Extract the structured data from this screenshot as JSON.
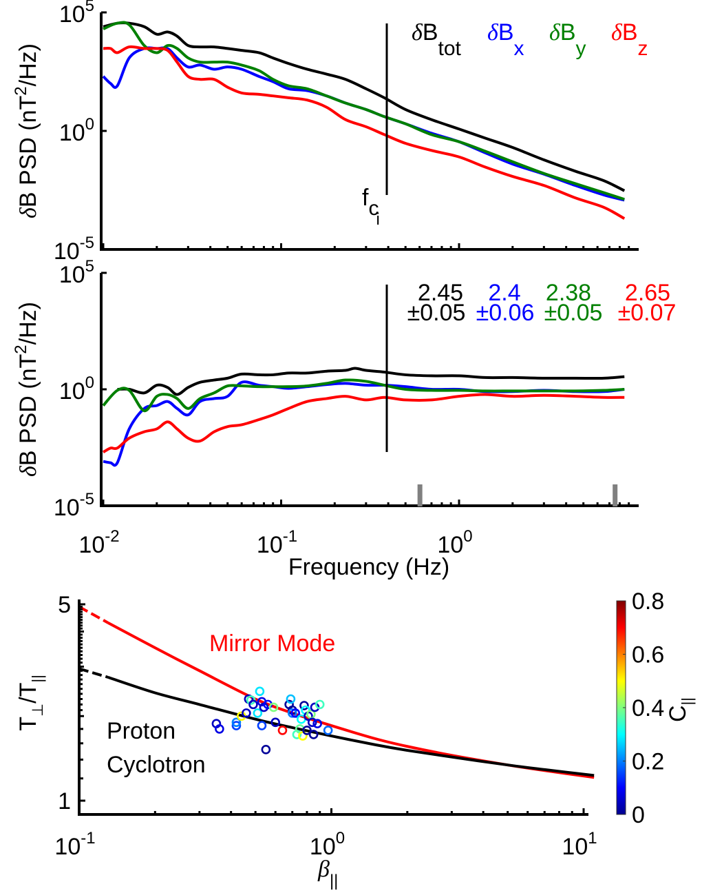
{
  "chart_data": [
    {
      "type": "line",
      "panel": "top",
      "xscale": "log",
      "yscale": "log",
      "xlim": [
        0.01,
        8.5
      ],
      "ylim": [
        1e-05,
        100000.0
      ],
      "ylabel": "δB PSD (nT²/Hz)",
      "ylabel_parts": {
        "delta": "δ",
        "main": "B PSD (nT",
        "sup": "2",
        "tail": "/Hz)"
      },
      "yticks": [
        {
          "value": 100000.0,
          "base": "10",
          "exp": "5"
        },
        {
          "value": 1,
          "base": "10",
          "exp": "0"
        },
        {
          "value": 1e-05,
          "base": "10",
          "exp": "-5"
        }
      ],
      "grid": false,
      "vline": {
        "x": 0.38,
        "label_main": "f",
        "label_sub": "c",
        "label_subsub": "i"
      },
      "legend": {
        "placement": "top-right",
        "entries": [
          {
            "delta": "δ",
            "main": "B",
            "sub": "tot",
            "color": "#000000"
          },
          {
            "delta": "δ",
            "main": "B",
            "sub": "x",
            "color": "#0000ff"
          },
          {
            "delta": "δ",
            "main": "B",
            "sub": "y",
            "color": "#008000"
          },
          {
            "delta": "δ",
            "main": "B",
            "sub": "z",
            "color": "#ff0000"
          }
        ]
      },
      "series": [
        {
          "name": "δB_tot",
          "color": "#000000",
          "x": [
            0.01,
            0.012,
            0.014,
            0.017,
            0.02,
            0.023,
            0.026,
            0.03,
            0.035,
            0.042,
            0.05,
            0.06,
            0.075,
            0.09,
            0.11,
            0.14,
            0.18,
            0.23,
            0.3,
            0.38,
            0.5,
            0.7,
            1.0,
            1.4,
            2.0,
            3.0,
            4.5,
            6.5,
            8.5
          ],
          "y": [
            25000,
            35000,
            35000,
            25000,
            12000,
            15000,
            10000,
            4000,
            3500,
            3500,
            3000,
            2500,
            2000,
            1200,
            700,
            400,
            250,
            150,
            60,
            25,
            8,
            3,
            1.2,
            0.5,
            0.2,
            0.06,
            0.02,
            0.008,
            0.003
          ]
        },
        {
          "name": "δB_x",
          "color": "#0000ff",
          "x": [
            0.01,
            0.011,
            0.012,
            0.014,
            0.017,
            0.02,
            0.023,
            0.026,
            0.03,
            0.035,
            0.042,
            0.05,
            0.06,
            0.075,
            0.09,
            0.11,
            0.14,
            0.18,
            0.23,
            0.3,
            0.38,
            0.5,
            0.7,
            1.0,
            1.4,
            2.0,
            3.0,
            4.5,
            6.5,
            8.5
          ],
          "y": [
            200,
            100,
            80,
            1200,
            3000,
            3000,
            3000,
            1200,
            500,
            600,
            400,
            500,
            400,
            200,
            120,
            60,
            50,
            30,
            15,
            8,
            4,
            2,
            0.8,
            0.35,
            0.12,
            0.04,
            0.015,
            0.005,
            0.002,
            0.0012
          ]
        },
        {
          "name": "δB_y",
          "color": "#008000",
          "x": [
            0.01,
            0.012,
            0.014,
            0.017,
            0.02,
            0.023,
            0.026,
            0.03,
            0.035,
            0.042,
            0.05,
            0.06,
            0.075,
            0.09,
            0.11,
            0.14,
            0.18,
            0.23,
            0.3,
            0.38,
            0.5,
            0.7,
            1.0,
            1.4,
            2.0,
            3.0,
            4.5,
            6.5,
            8.5
          ],
          "y": [
            20000,
            35000,
            30000,
            4000,
            2000,
            4000,
            3000,
            1200,
            800,
            800,
            800,
            600,
            350,
            150,
            80,
            60,
            30,
            15,
            8,
            4,
            2,
            0.7,
            0.35,
            0.14,
            0.05,
            0.016,
            0.006,
            0.0025,
            0.0013
          ]
        },
        {
          "name": "δB_z",
          "color": "#ff0000",
          "x": [
            0.01,
            0.011,
            0.012,
            0.014,
            0.017,
            0.02,
            0.023,
            0.026,
            0.03,
            0.035,
            0.042,
            0.05,
            0.06,
            0.075,
            0.09,
            0.11,
            0.14,
            0.18,
            0.23,
            0.3,
            0.38,
            0.5,
            0.7,
            1.0,
            1.4,
            2.0,
            3.0,
            4.5,
            6.5,
            8.5
          ],
          "y": [
            3000,
            3000,
            2000,
            3500,
            3000,
            3000,
            2500,
            800,
            200,
            150,
            150,
            70,
            40,
            35,
            30,
            25,
            20,
            10,
            3,
            1.5,
            0.7,
            0.3,
            0.15,
            0.08,
            0.03,
            0.012,
            0.005,
            0.0015,
            0.0006,
            0.0002
          ]
        }
      ]
    },
    {
      "type": "line",
      "panel": "middle",
      "xscale": "log",
      "yscale": "log",
      "xlim": [
        0.01,
        8.5
      ],
      "ylim": [
        1e-05,
        100000.0
      ],
      "xlabel": "Frequency (Hz)",
      "ylabel": "δB PSD (nT²/Hz)",
      "ylabel_parts": {
        "delta": "δ",
        "main": "B PSD (nT",
        "sup": "2",
        "tail": "/Hz)"
      },
      "xticks": [
        {
          "value": 0.01,
          "base": "10",
          "exp": "-2"
        },
        {
          "value": 0.1,
          "base": "10",
          "exp": "-1"
        },
        {
          "value": 1,
          "base": "10",
          "exp": "0"
        }
      ],
      "yticks": [
        {
          "value": 100000.0,
          "base": "10",
          "exp": "5"
        },
        {
          "value": 1,
          "base": "10",
          "exp": "0"
        },
        {
          "value": 1e-05,
          "base": "10",
          "exp": "-5"
        }
      ],
      "grid": false,
      "vline": {
        "x": 0.38
      },
      "range_markers": {
        "x": [
          0.6,
          7.5
        ],
        "color": "#808080"
      },
      "annotations": [
        {
          "slope": "2.45",
          "err": "±0.05",
          "color": "#000000"
        },
        {
          "slope": "2.4",
          "err": "±0.06",
          "color": "#0000ff"
        },
        {
          "slope": "2.38",
          "err": "±0.05",
          "color": "#008000"
        },
        {
          "slope": "2.65",
          "err": "±0.07",
          "color": "#ff0000"
        }
      ],
      "series": [
        {
          "name": "δB_tot compensated",
          "color": "#000000",
          "x": [
            0.012,
            0.014,
            0.017,
            0.02,
            0.023,
            0.026,
            0.03,
            0.035,
            0.042,
            0.05,
            0.06,
            0.075,
            0.09,
            0.11,
            0.14,
            0.18,
            0.23,
            0.26,
            0.3,
            0.38,
            0.5,
            0.7,
            1.0,
            1.4,
            2.0,
            3.0,
            4.5,
            6.5,
            8.5
          ],
          "y": [
            1.0,
            1.0,
            0.7,
            1.5,
            1.2,
            0.6,
            1.2,
            2.0,
            2.5,
            3.0,
            4.5,
            4.2,
            4.2,
            5.0,
            5.0,
            6.0,
            6.5,
            8.0,
            6.5,
            5.5,
            4.2,
            3.8,
            3.8,
            3.2,
            3.2,
            3.0,
            3.0,
            3.0,
            3.5
          ]
        },
        {
          "name": "δB_x compensated",
          "color": "#0000ff",
          "x": [
            0.01,
            0.011,
            0.012,
            0.014,
            0.017,
            0.02,
            0.023,
            0.026,
            0.03,
            0.035,
            0.042,
            0.05,
            0.06,
            0.075,
            0.09,
            0.11,
            0.14,
            0.18,
            0.23,
            0.3,
            0.38,
            0.5,
            0.7,
            1.0,
            1.4,
            2.0,
            3.0,
            4.5,
            6.5,
            8.5
          ],
          "y": [
            0.0008,
            0.0007,
            0.0007,
            0.02,
            0.15,
            0.2,
            0.3,
            0.15,
            0.08,
            0.3,
            0.4,
            0.5,
            2.0,
            1.5,
            1.3,
            1.1,
            1.3,
            1.6,
            1.8,
            1.5,
            1.5,
            1.3,
            1.0,
            1.0,
            0.8,
            0.8,
            0.9,
            0.8,
            0.8,
            1.0
          ]
        },
        {
          "name": "δB_y compensated",
          "color": "#008000",
          "x": [
            0.01,
            0.012,
            0.014,
            0.017,
            0.02,
            0.023,
            0.026,
            0.03,
            0.035,
            0.042,
            0.05,
            0.06,
            0.075,
            0.09,
            0.11,
            0.14,
            0.18,
            0.23,
            0.3,
            0.38,
            0.5,
            0.7,
            1.0,
            1.4,
            2.0,
            3.0,
            4.5,
            6.5,
            8.5
          ],
          "y": [
            0.2,
            0.9,
            0.9,
            0.12,
            0.5,
            0.6,
            0.4,
            0.15,
            0.4,
            0.7,
            1.4,
            1.4,
            1.3,
            1.3,
            1.3,
            1.4,
            1.8,
            2.5,
            2.2,
            1.5,
            1.0,
            0.9,
            0.9,
            0.85,
            0.85,
            0.85,
            0.85,
            0.9,
            1.0
          ]
        },
        {
          "name": "δB_z compensated",
          "color": "#ff0000",
          "x": [
            0.01,
            0.011,
            0.012,
            0.014,
            0.017,
            0.02,
            0.023,
            0.026,
            0.03,
            0.035,
            0.042,
            0.05,
            0.06,
            0.075,
            0.09,
            0.11,
            0.14,
            0.18,
            0.23,
            0.3,
            0.38,
            0.5,
            0.7,
            1.0,
            1.4,
            2.0,
            3.0,
            4.5,
            6.5,
            8.5
          ],
          "y": [
            0.002,
            0.003,
            0.003,
            0.008,
            0.015,
            0.02,
            0.04,
            0.02,
            0.008,
            0.006,
            0.015,
            0.025,
            0.03,
            0.05,
            0.08,
            0.15,
            0.3,
            0.4,
            0.5,
            0.35,
            0.45,
            0.35,
            0.35,
            0.5,
            0.6,
            0.5,
            0.55,
            0.5,
            0.45,
            0.45
          ]
        }
      ]
    },
    {
      "type": "scatter",
      "panel": "bottom",
      "xscale": "log",
      "yscale": "log",
      "xlim": [
        0.1,
        11
      ],
      "ylim": [
        0.93,
        5
      ],
      "xlabel": "β||",
      "xlabel_parts": {
        "main": "β",
        "sub": "||"
      },
      "ylabel": "T⊥/T||",
      "ylabel_parts": {
        "t1": "T",
        "sub1": "⊥",
        "mid": "/T",
        "sub2": "||"
      },
      "xticks": [
        {
          "value": 0.1,
          "base": "10",
          "exp": "-1"
        },
        {
          "value": 1,
          "base": "10",
          "exp": "0"
        },
        {
          "value": 10,
          "base": "10",
          "exp": "1"
        }
      ],
      "yticks": [
        {
          "value": 5,
          "label": "5"
        },
        {
          "value": 1,
          "label": "1"
        }
      ],
      "grid": false,
      "curves": [
        {
          "name": "Mirror Mode",
          "label": "Mirror Mode",
          "color": "#ff0000",
          "x": [
            0.1,
            0.13,
            0.2,
            0.3,
            0.5,
            0.7,
            1.0,
            1.5,
            2,
            3,
            5,
            7,
            11
          ],
          "y": [
            4.9,
            4.3,
            3.5,
            2.9,
            2.3,
            2.05,
            1.85,
            1.66,
            1.56,
            1.45,
            1.34,
            1.28,
            1.21
          ],
          "dashed_until": 0.13
        },
        {
          "name": "Proton Cyclotron",
          "label_line1": "Proton",
          "label_line2": "Cyclotron",
          "color": "#000000",
          "x": [
            0.1,
            0.13,
            0.2,
            0.3,
            0.5,
            0.7,
            1.0,
            1.5,
            2,
            3,
            5,
            7,
            11
          ],
          "y": [
            2.95,
            2.75,
            2.42,
            2.2,
            1.95,
            1.82,
            1.7,
            1.58,
            1.51,
            1.43,
            1.34,
            1.29,
            1.23
          ],
          "dashed_until": 0.13
        }
      ],
      "colorbar": {
        "label": "C||",
        "label_parts": {
          "main": "C",
          "sub": "||"
        },
        "range": [
          0,
          0.8
        ],
        "ticks": [
          "0",
          "0.2",
          "0.4",
          "0.6",
          "0.8"
        ],
        "colormap": "jet"
      },
      "points": [
        {
          "x": 0.35,
          "y": 1.88,
          "c": 0.05
        },
        {
          "x": 0.36,
          "y": 1.8,
          "c": 0.08
        },
        {
          "x": 0.42,
          "y": 1.85,
          "c": 0.15
        },
        {
          "x": 0.42,
          "y": 1.9,
          "c": 0.2
        },
        {
          "x": 0.44,
          "y": 2.0,
          "c": 0.5
        },
        {
          "x": 0.46,
          "y": 2.05,
          "c": 0.05
        },
        {
          "x": 0.47,
          "y": 2.3,
          "c": 0.05
        },
        {
          "x": 0.48,
          "y": 2.28,
          "c": 0.35
        },
        {
          "x": 0.49,
          "y": 2.2,
          "c": 0.05
        },
        {
          "x": 0.51,
          "y": 2.05,
          "c": 0.28
        },
        {
          "x": 0.52,
          "y": 2.45,
          "c": 0.28
        },
        {
          "x": 0.53,
          "y": 1.85,
          "c": 0.15
        },
        {
          "x": 0.53,
          "y": 2.25,
          "c": 0.08
        },
        {
          "x": 0.54,
          "y": 2.15,
          "c": 0.05
        },
        {
          "x": 0.55,
          "y": 1.52,
          "c": 0.02
        },
        {
          "x": 0.56,
          "y": 2.2,
          "c": 0.1
        },
        {
          "x": 0.59,
          "y": 2.15,
          "c": 0.4
        },
        {
          "x": 0.6,
          "y": 1.9,
          "c": 0.05
        },
        {
          "x": 0.64,
          "y": 1.78,
          "c": 0.7
        },
        {
          "x": 0.68,
          "y": 2.2,
          "c": 0.02
        },
        {
          "x": 0.69,
          "y": 2.3,
          "c": 0.25
        },
        {
          "x": 0.7,
          "y": 2.1,
          "c": 0.02
        },
        {
          "x": 0.7,
          "y": 2.05,
          "c": 0.2
        },
        {
          "x": 0.72,
          "y": 2.05,
          "c": 0.1
        },
        {
          "x": 0.73,
          "y": 1.72,
          "c": 0.35
        },
        {
          "x": 0.75,
          "y": 1.8,
          "c": 0.38
        },
        {
          "x": 0.76,
          "y": 1.95,
          "c": 0.3
        },
        {
          "x": 0.77,
          "y": 1.7,
          "c": 0.5
        },
        {
          "x": 0.78,
          "y": 2.18,
          "c": 0.02
        },
        {
          "x": 0.79,
          "y": 2.1,
          "c": 0.3
        },
        {
          "x": 0.8,
          "y": 1.78,
          "c": 0.02
        },
        {
          "x": 0.81,
          "y": 2.0,
          "c": 0.05
        },
        {
          "x": 0.83,
          "y": 2.03,
          "c": 0.4
        },
        {
          "x": 0.84,
          "y": 1.9,
          "c": 0.05
        },
        {
          "x": 0.85,
          "y": 1.72,
          "c": 0.02
        },
        {
          "x": 0.86,
          "y": 2.15,
          "c": 0.05
        },
        {
          "x": 0.88,
          "y": 1.88,
          "c": 0.08
        },
        {
          "x": 0.9,
          "y": 2.2,
          "c": 0.35
        },
        {
          "x": 0.97,
          "y": 1.78,
          "c": 0.18
        }
      ]
    }
  ]
}
